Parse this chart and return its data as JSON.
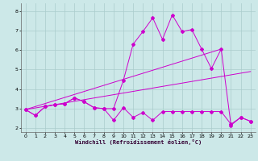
{
  "xlabel": "Windchill (Refroidissement éolien,°C)",
  "x_ticks": [
    0,
    1,
    2,
    3,
    4,
    5,
    6,
    7,
    8,
    9,
    10,
    11,
    12,
    13,
    14,
    15,
    16,
    17,
    18,
    19,
    20,
    21,
    22,
    23
  ],
  "y_ticks": [
    2,
    3,
    4,
    5,
    6,
    7,
    8
  ],
  "ylim": [
    1.8,
    8.4
  ],
  "xlim": [
    -0.5,
    23.5
  ],
  "bg_color": "#cce8e8",
  "line_color": "#cc00cc",
  "grid_color": "#aacccc",
  "line1_x": [
    0,
    1,
    2,
    3,
    4,
    5,
    6,
    7,
    8,
    9,
    10,
    11,
    12,
    13,
    14,
    15,
    16,
    17,
    18,
    19,
    20,
    21,
    22,
    23
  ],
  "line1_y": [
    2.95,
    2.65,
    3.1,
    3.2,
    3.25,
    3.55,
    3.35,
    3.05,
    3.0,
    3.0,
    4.45,
    6.3,
    6.95,
    7.65,
    6.55,
    7.8,
    6.95,
    7.05,
    6.05,
    5.05,
    6.05,
    2.15,
    2.55,
    2.35
  ],
  "line2_x": [
    0,
    1,
    2,
    3,
    4,
    5,
    6,
    7,
    8,
    9,
    10,
    11,
    12,
    13,
    14,
    15,
    16,
    17,
    18,
    19,
    20,
    21,
    22,
    23
  ],
  "line2_y": [
    2.95,
    2.65,
    3.1,
    3.2,
    3.25,
    3.55,
    3.35,
    3.05,
    3.0,
    2.4,
    3.05,
    2.55,
    2.8,
    2.4,
    2.85,
    2.85,
    2.85,
    2.85,
    2.85,
    2.85,
    2.85,
    2.2,
    2.55,
    2.35
  ],
  "trend1_x": [
    0,
    20
  ],
  "trend1_y": [
    2.95,
    6.05
  ],
  "trend2_x": [
    0,
    23
  ],
  "trend2_y": [
    2.95,
    4.9
  ],
  "marker": "D",
  "marker_size": 2.0,
  "linewidth": 0.7
}
